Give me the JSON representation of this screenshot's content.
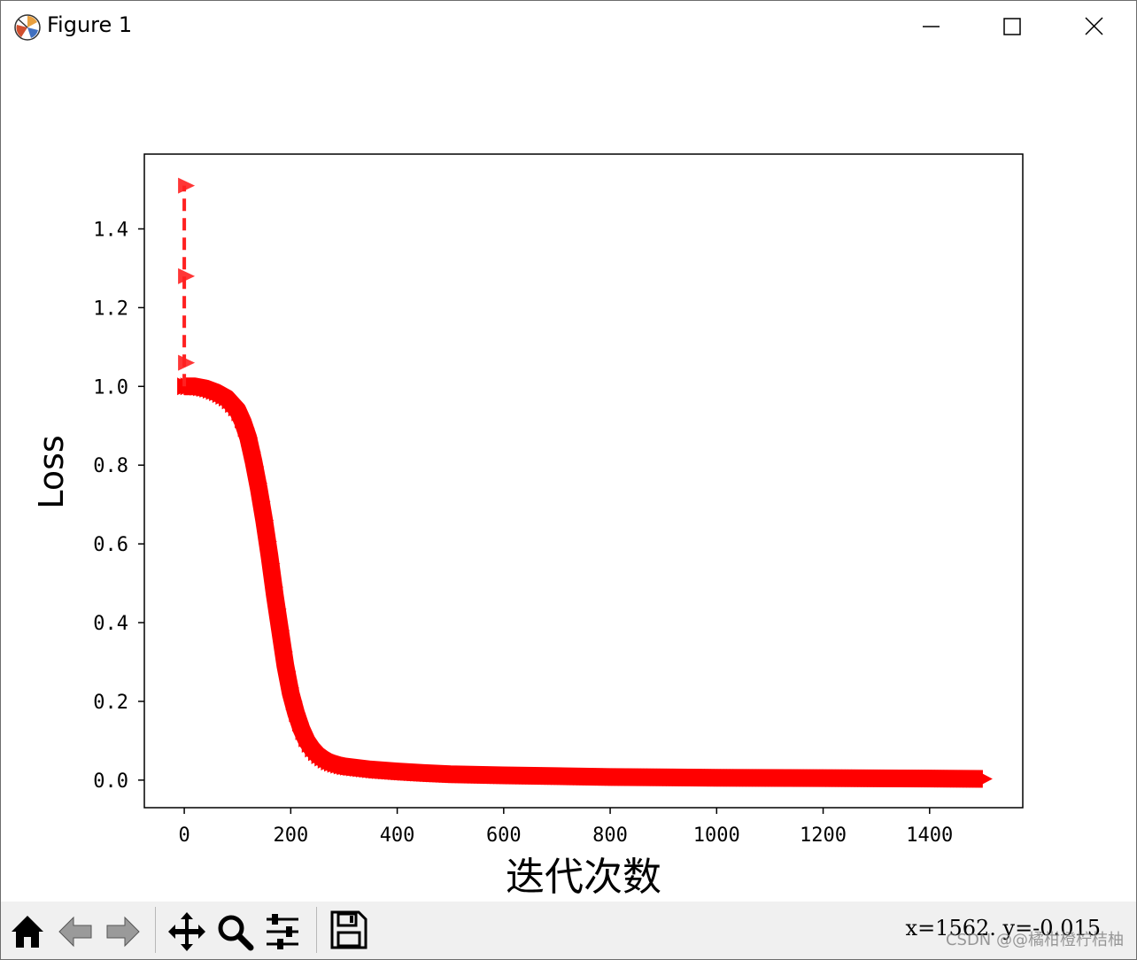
{
  "window": {
    "title": "Figure 1",
    "icon": "matplotlib-icon",
    "controls": [
      "minimize-icon",
      "maximize-icon",
      "close-icon"
    ]
  },
  "toolbar": {
    "buttons": [
      "home-icon",
      "back-arrow-icon",
      "forward-arrow-icon",
      "pan-icon",
      "zoom-icon",
      "configure-subplots-icon",
      "save-icon"
    ],
    "coords": "x=1562.  y=-0.015"
  },
  "watermark": "CSDN @@橘柑橙柠桔柚",
  "colors": {
    "line": "#ff0000",
    "dashed": "#ff2020",
    "axis": "#000000"
  },
  "chart_data": {
    "type": "line",
    "title": "",
    "xlabel": "迭代次数",
    "ylabel": "Loss",
    "xlim": [
      -75,
      1575
    ],
    "ylim": [
      -0.07,
      1.59
    ],
    "xticks": [
      0,
      200,
      400,
      600,
      800,
      1000,
      1200,
      1400
    ],
    "xtick_labels": [
      "0",
      "200",
      "400",
      "600",
      "800",
      "1000",
      "1200",
      "1400"
    ],
    "yticks": [
      0.0,
      0.2,
      0.4,
      0.6,
      0.8,
      1.0,
      1.2,
      1.4
    ],
    "ytick_labels": [
      "0.0",
      "0.2",
      "0.4",
      "0.6",
      "0.8",
      "1.0",
      "1.2",
      "1.4"
    ],
    "grid": false,
    "marker": "right-triangle",
    "series": [
      {
        "x": [
          0,
          20,
          40,
          60,
          80,
          100,
          110,
          120,
          130,
          140,
          150,
          160,
          170,
          180,
          190,
          200,
          210,
          220,
          230,
          240,
          250,
          260,
          270,
          280,
          290,
          300,
          350,
          400,
          450,
          500,
          600,
          700,
          800,
          1000,
          1200,
          1400,
          1500
        ],
        "y": [
          1.0,
          1.0,
          0.995,
          0.985,
          0.97,
          0.94,
          0.91,
          0.87,
          0.81,
          0.74,
          0.66,
          0.57,
          0.47,
          0.38,
          0.29,
          0.22,
          0.17,
          0.13,
          0.1,
          0.08,
          0.065,
          0.055,
          0.047,
          0.042,
          0.038,
          0.035,
          0.027,
          0.022,
          0.018,
          0.015,
          0.012,
          0.01,
          0.008,
          0.006,
          0.005,
          0.004,
          0.003
        ]
      },
      {
        "style": "dashed",
        "x": [
          0,
          0,
          0,
          0
        ],
        "y": [
          1.0,
          1.06,
          1.28,
          1.51
        ]
      }
    ]
  }
}
